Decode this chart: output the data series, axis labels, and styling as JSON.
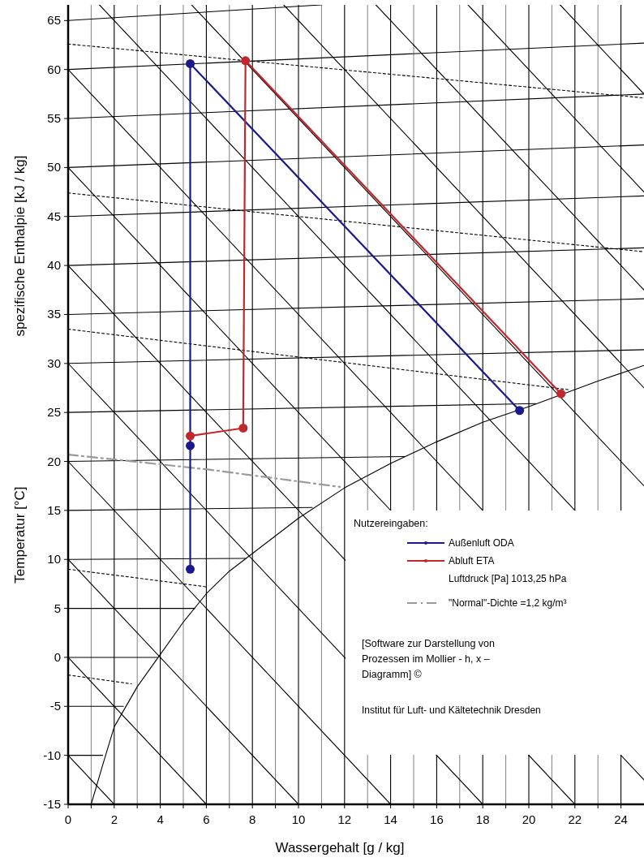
{
  "chart_data": {
    "type": "line",
    "xlabel": "Wassergehalt [g / kg]",
    "ylabel": "Temperatur [°C]",
    "legend_title": "Nutzereingaben:",
    "legend": "bottom right",
    "grid": "x",
    "xlim": [
      0,
      25
    ],
    "ylim": [
      -15,
      66.6
    ],
    "xticks": [
      0,
      {
        "value": 1,
        "label": null
      },
      2,
      {
        "value": 3,
        "label": null
      },
      4,
      {
        "value": 5,
        "label": null
      },
      6,
      {
        "value": 7,
        "label": null
      },
      8,
      {
        "value": 9,
        "label": null
      },
      10,
      {
        "value": 11,
        "label": null
      },
      12,
      {
        "value": 13,
        "label": null
      },
      14,
      {
        "value": 15,
        "label": null
      },
      16,
      {
        "value": 17,
        "label": null
      },
      18,
      {
        "value": 19,
        "label": null
      },
      20,
      {
        "value": 21,
        "label": null
      },
      22,
      {
        "value": 23,
        "label": null
      },
      24
    ],
    "yticks": [
      -15,
      -10,
      -5,
      0,
      5,
      10,
      15,
      20,
      25,
      30,
      35,
      40,
      45,
      50,
      55,
      60,
      65
    ],
    "annotations": [
      "spezifische Enthalpie [kJ / kg]",
      "Luftdruck [Pa] 1013,25 hPa",
      "[Software zur Darstellung von Prozessen im Mollier - h, x – Diagramm] ©",
      "Institut für Luft- und Kältetechnik Dresden"
    ],
    "series": [
      {
        "color": "#000000",
        "x": [
          1,
          1.5,
          2,
          3,
          4,
          5,
          6,
          7,
          8,
          10,
          12,
          14,
          16,
          18,
          20,
          23,
          25
        ],
        "values": [
          -15,
          -11,
          -7.1,
          -3,
          0.3,
          3.6,
          6.5,
          8.8,
          10.6,
          14.2,
          17.3,
          19.8,
          22,
          24,
          25.6,
          28.2,
          29.8
        ]
      },
      {
        "color": "#000000",
        "x": [
          0,
          1.5
        ],
        "values": [
          -10,
          -10
        ]
      },
      {
        "color": "#000000",
        "x": [
          0,
          2.4
        ],
        "values": [
          -5,
          -5
        ]
      },
      {
        "color": "#000000",
        "x": [
          0,
          3.9
        ],
        "values": [
          0,
          0
        ]
      },
      {
        "color": "#000000",
        "x": [
          0,
          5.5
        ],
        "values": [
          5,
          5
        ]
      },
      {
        "color": "#000000",
        "x": [
          0,
          7.7
        ],
        "values": [
          10,
          10.1
        ]
      },
      {
        "color": "#000000",
        "x": [
          0,
          10.6
        ],
        "values": [
          15,
          15.3
        ]
      },
      {
        "color": "#000000",
        "x": [
          0,
          14.6
        ],
        "values": [
          20,
          20.5
        ]
      },
      {
        "color": "#000000",
        "x": [
          0,
          20.3
        ],
        "values": [
          25,
          25.9
        ]
      },
      {
        "color": "#000000",
        "x": [
          0,
          25
        ],
        "values": [
          30,
          31.4
        ]
      },
      {
        "color": "#000000",
        "x": [
          0,
          25
        ],
        "values": [
          35,
          36.6
        ]
      },
      {
        "color": "#000000",
        "x": [
          0,
          25
        ],
        "values": [
          40,
          41.8
        ]
      },
      {
        "color": "#000000",
        "x": [
          0,
          25
        ],
        "values": [
          45,
          47.1
        ]
      },
      {
        "color": "#000000",
        "x": [
          0,
          25
        ],
        "values": [
          50,
          52.3
        ]
      },
      {
        "color": "#000000",
        "x": [
          0,
          25
        ],
        "values": [
          55,
          57.5
        ]
      },
      {
        "color": "#000000",
        "x": [
          0,
          25
        ],
        "values": [
          60,
          62.7
        ]
      },
      {
        "color": "#000000",
        "x": [
          0,
          11
        ],
        "values": [
          65,
          66.6
        ]
      },
      {
        "color": "#000000",
        "x": [
          0,
          2
        ],
        "values": [
          -10,
          -15
        ]
      },
      {
        "color": "#000000",
        "x": [
          0,
          6
        ],
        "values": [
          0,
          -15
        ]
      },
      {
        "color": "#000000",
        "x": [
          0,
          10
        ],
        "values": [
          10,
          -15
        ]
      },
      {
        "color": "#000000",
        "x": [
          0,
          14
        ],
        "values": [
          20,
          -15
        ]
      },
      {
        "color": "#000000",
        "x": [
          0,
          18
        ],
        "values": [
          30,
          -15
        ]
      },
      {
        "color": "#000000",
        "x": [
          0,
          22
        ],
        "values": [
          40,
          -15
        ]
      },
      {
        "color": "#000000",
        "x": [
          0,
          25
        ],
        "values": [
          50,
          -12.5
        ]
      },
      {
        "color": "#000000",
        "x": [
          0,
          18
        ],
        "values": [
          60,
          15
        ]
      },
      {
        "color": "#000000",
        "x": [
          1.36,
          22
        ],
        "values": [
          66.6,
          15
        ]
      },
      {
        "color": "#000000",
        "x": [
          5.36,
          25
        ],
        "values": [
          66.6,
          17.5
        ]
      },
      {
        "color": "#000000",
        "x": [
          9.36,
          25
        ],
        "values": [
          66.6,
          27.5
        ]
      },
      {
        "color": "#000000",
        "x": [
          13.36,
          25
        ],
        "values": [
          66.6,
          37.5
        ]
      },
      {
        "color": "#000000",
        "x": [
          17.36,
          25
        ],
        "values": [
          66.6,
          47.5
        ]
      },
      {
        "color": "#000000",
        "x": [
          21.36,
          25
        ],
        "values": [
          66.6,
          57.5
        ]
      },
      {
        "color": "#000000",
        "line_style": "dotted",
        "x": [
          0,
          25
        ],
        "values": [
          62.6,
          57.1
        ]
      },
      {
        "color": "#000000",
        "line_style": "dotted",
        "x": [
          0,
          25
        ],
        "values": [
          47.4,
          41.4
        ]
      },
      {
        "color": "#000000",
        "line_style": "dotted",
        "x": [
          0,
          21.8
        ],
        "values": [
          33.5,
          27.3
        ]
      },
      {
        "color": "#000000",
        "line_style": "dotted",
        "x": [
          0,
          6
        ],
        "values": [
          9,
          7.2
        ]
      },
      {
        "color": "#000000",
        "line_style": "dotted",
        "x": [
          0,
          2.75
        ],
        "values": [
          -1.8,
          -2.7
        ]
      },
      {
        "name": "\"Normal\"-Dichte =1,2 kg/m³",
        "color": "#999999",
        "line_style": "dashed",
        "x": [
          0,
          6,
          11.8
        ],
        "values": [
          20.7,
          19.2,
          17.4
        ]
      },
      {
        "name": "Außenluft ODA",
        "color": "#1a1a8c",
        "marker": "circle",
        "x": [
          5.3,
          5.3,
          5.3,
          19.6
        ],
        "values": [
          9,
          21.6,
          60.6,
          25.2
        ]
      },
      {
        "name": "Abluft ETA",
        "color": "#c0282d",
        "marker": "circle",
        "x": [
          5.3,
          7.6,
          7.7,
          21.4
        ],
        "values": [
          22.6,
          23.4,
          60.9,
          26.9
        ]
      }
    ]
  }
}
